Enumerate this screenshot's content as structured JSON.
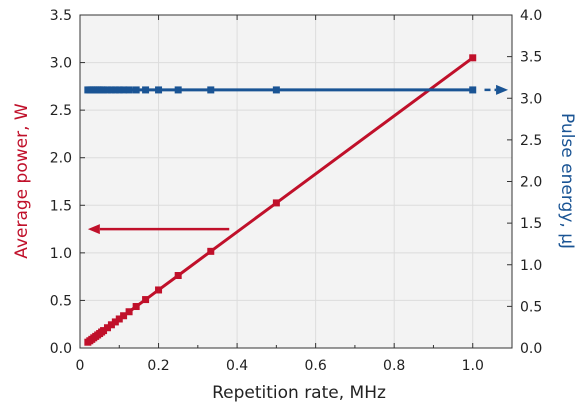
{
  "chart_data": {
    "type": "line",
    "xlabel": "Repetition rate, MHz",
    "ylabel_left": "Average power, W",
    "ylabel_right": "Pulse energy, μJ",
    "xlim": [
      0,
      1.1
    ],
    "ylim_left": [
      0,
      3.5
    ],
    "ylim_right": [
      0,
      4.0
    ],
    "x_ticks": [
      "0",
      "0.2",
      "0.4",
      "0.6",
      "0.8",
      "1.0"
    ],
    "y_left_ticks": [
      "0.0",
      "0.5",
      "1.0",
      "1.5",
      "2.0",
      "2.5",
      "3.0",
      "3.5"
    ],
    "y_right_ticks": [
      "0.0",
      "0.5",
      "1.0",
      "1.5",
      "2.0",
      "2.5",
      "3.0",
      "3.5",
      "4.0"
    ],
    "grid": true,
    "series": [
      {
        "axis": "left",
        "color": "#c0102a",
        "x": [
          0.02,
          0.025,
          0.03,
          0.035,
          0.04,
          0.045,
          0.05,
          0.055,
          0.06,
          0.07,
          0.08,
          0.09,
          0.1,
          0.111,
          0.125,
          0.143,
          0.167,
          0.2,
          0.25,
          0.333,
          0.5,
          1.0
        ],
        "values": [
          0.061,
          0.076,
          0.091,
          0.107,
          0.122,
          0.137,
          0.152,
          0.168,
          0.183,
          0.213,
          0.244,
          0.274,
          0.305,
          0.339,
          0.381,
          0.436,
          0.509,
          0.61,
          0.762,
          1.016,
          1.525,
          3.05
        ]
      },
      {
        "axis": "right",
        "color": "#1a5494",
        "x": [
          0.02,
          0.025,
          0.03,
          0.035,
          0.04,
          0.045,
          0.05,
          0.055,
          0.06,
          0.07,
          0.08,
          0.09,
          0.1,
          0.111,
          0.125,
          0.143,
          0.167,
          0.2,
          0.25,
          0.333,
          0.5,
          1.0
        ],
        "values": [
          3.1,
          3.1,
          3.1,
          3.1,
          3.1,
          3.1,
          3.1,
          3.1,
          3.1,
          3.1,
          3.1,
          3.1,
          3.1,
          3.1,
          3.1,
          3.1,
          3.1,
          3.1,
          3.1,
          3.1,
          3.1,
          3.1
        ]
      }
    ],
    "annotations": [
      {
        "type": "arrow",
        "series_axis": "left",
        "direction": "left",
        "color": "#c0102a",
        "x_from": 0.38,
        "x_to": 0.02,
        "y": 1.25
      },
      {
        "type": "arrow",
        "series_axis": "right",
        "direction": "right",
        "color": "#1a5494",
        "x_from": 1.03,
        "x_to": 1.09,
        "y": 3.1
      }
    ]
  }
}
